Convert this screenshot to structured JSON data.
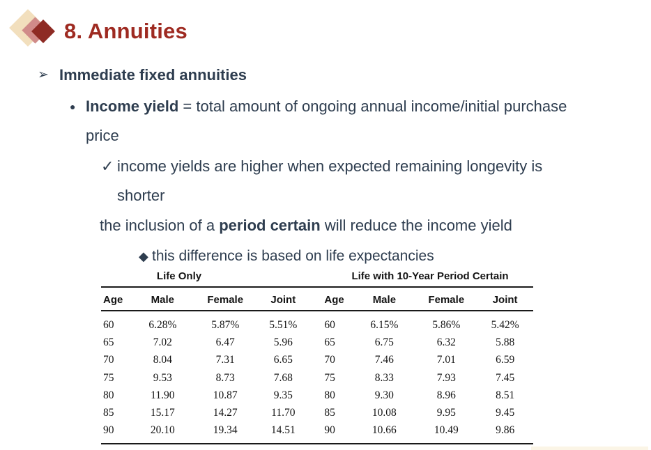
{
  "slide": {
    "title": "8. Annuities"
  },
  "colors": {
    "title_red": "#9E2A21",
    "body_navy": "#2E3D4F",
    "diamond_cream": "#F2DFBD",
    "diamond_rose": "#D08B89",
    "diamond_red": "#8E2B24",
    "table_text": "#141414"
  },
  "icons": {
    "arrow_bullet": "➢",
    "dot_bullet": "●",
    "check_bullet": "✓",
    "diamond_bullet": "◆"
  },
  "bullets": {
    "immediate": "Immediate fixed annuities",
    "income_bold": "Income yield",
    "income_rest": " = total amount of ongoing annual income/initial purchase",
    "income_wrap": "price",
    "check_line1": "income yields are higher when expected remaining longevity is",
    "check_line2": "shorter",
    "inclusion_pre": "the inclusion of a ",
    "inclusion_bold": "period certain",
    "inclusion_post": " will reduce the income yield",
    "diamond_line": "this difference is based on life expectancies"
  },
  "table": {
    "group_headers": [
      "Life Only",
      "Life with 10-Year Period Certain"
    ],
    "columns": [
      "Age",
      "Male",
      "Female",
      "Joint",
      "Age",
      "Male",
      "Female",
      "Joint"
    ],
    "rows": [
      [
        "60",
        "6.28%",
        "5.87%",
        "5.51%",
        "60",
        "6.15%",
        "5.86%",
        "5.42%"
      ],
      [
        "65",
        "7.02",
        "6.47",
        "5.96",
        "65",
        "6.75",
        "6.32",
        "5.88"
      ],
      [
        "70",
        "8.04",
        "7.31",
        "6.65",
        "70",
        "7.46",
        "7.01",
        "6.59"
      ],
      [
        "75",
        "9.53",
        "8.73",
        "7.68",
        "75",
        "8.33",
        "7.93",
        "7.45"
      ],
      [
        "80",
        "11.90",
        "10.87",
        "9.35",
        "80",
        "9.30",
        "8.96",
        "8.51"
      ],
      [
        "85",
        "15.17",
        "14.27",
        "11.70",
        "85",
        "10.08",
        "9.95",
        "9.45"
      ],
      [
        "90",
        "20.10",
        "19.34",
        "14.51",
        "90",
        "10.66",
        "10.49",
        "9.86"
      ]
    ]
  }
}
